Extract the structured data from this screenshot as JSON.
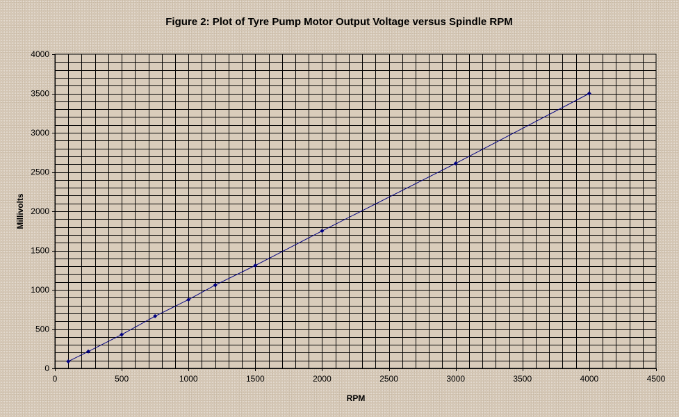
{
  "chart_data": {
    "type": "line",
    "title": "Figure 2: Plot of Tyre Pump Motor Output Voltage versus Spindle RPM",
    "xlabel": "RPM",
    "ylabel": "Millivolts",
    "xlim": [
      0,
      4500
    ],
    "ylim": [
      0,
      4000
    ],
    "x_ticks": [
      0,
      500,
      1000,
      1500,
      2000,
      2500,
      3000,
      3500,
      4000,
      4500
    ],
    "y_ticks": [
      0,
      500,
      1000,
      1500,
      2000,
      2500,
      3000,
      3500,
      4000
    ],
    "grid": true,
    "grid_minor_x_step": 100,
    "grid_minor_y_step": 100,
    "legend": "none",
    "series": [
      {
        "x": [
          100,
          250,
          500,
          750,
          1000,
          1200,
          1500,
          2000,
          3000,
          4000
        ],
        "y": [
          88,
          215,
          430,
          665,
          875,
          1060,
          1310,
          1750,
          2610,
          3500
        ]
      }
    ],
    "colors": {
      "line": "#000080",
      "marker": "#000080",
      "grid": "#000000",
      "plot_background": "#d9ccbb"
    }
  }
}
